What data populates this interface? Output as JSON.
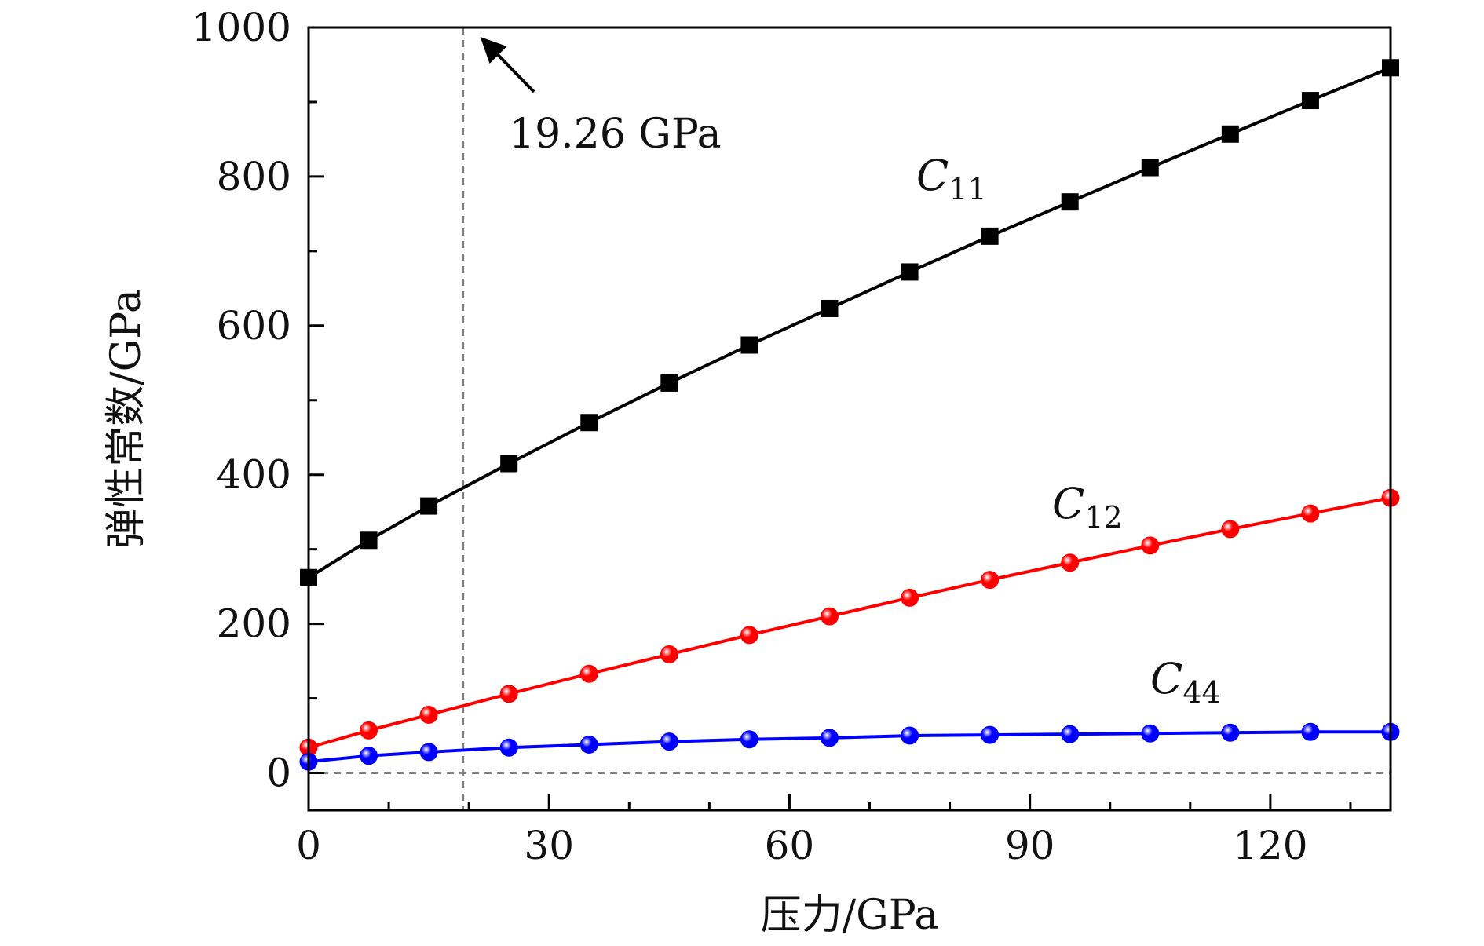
{
  "chart_data": {
    "type": "line",
    "xlabel": "压力/GPa",
    "ylabel": "弹性常数/GPa",
    "xlim": [
      0,
      135
    ],
    "ylim": [
      -50,
      1000
    ],
    "x_ticks": [
      0,
      30,
      60,
      90,
      120
    ],
    "y_ticks": [
      0,
      200,
      400,
      600,
      800,
      1000
    ],
    "grid": false,
    "x": [
      0,
      7.5,
      15,
      25,
      35,
      45,
      55,
      65,
      75,
      85,
      95,
      105,
      115,
      125,
      135
    ],
    "series": [
      {
        "name": "C11",
        "label_main": "C",
        "label_sub": "11",
        "color": "#000000",
        "marker": "square",
        "values": [
          262,
          312,
          358,
          415,
          470,
          523,
          574,
          623,
          672,
          720,
          766,
          812,
          857,
          902,
          946
        ]
      },
      {
        "name": "C12",
        "label_main": "C",
        "label_sub": "12",
        "color": "#ff0000",
        "marker": "circle",
        "values": [
          34,
          57,
          78,
          106,
          133,
          159,
          185,
          210,
          235,
          259,
          282,
          305,
          327,
          348,
          369
        ]
      },
      {
        "name": "C44",
        "label_main": "C",
        "label_sub": "44",
        "color": "#0000ff",
        "marker": "circle",
        "values": [
          15,
          23,
          28,
          34,
          38,
          42,
          45,
          47,
          50,
          51,
          52,
          53,
          54,
          55,
          55
        ]
      }
    ],
    "reference_lines": {
      "vertical_x": 19.26,
      "horizontal_y": 0,
      "color": "#808080"
    },
    "annotations": [
      {
        "text": "19.26 GPa"
      }
    ]
  }
}
